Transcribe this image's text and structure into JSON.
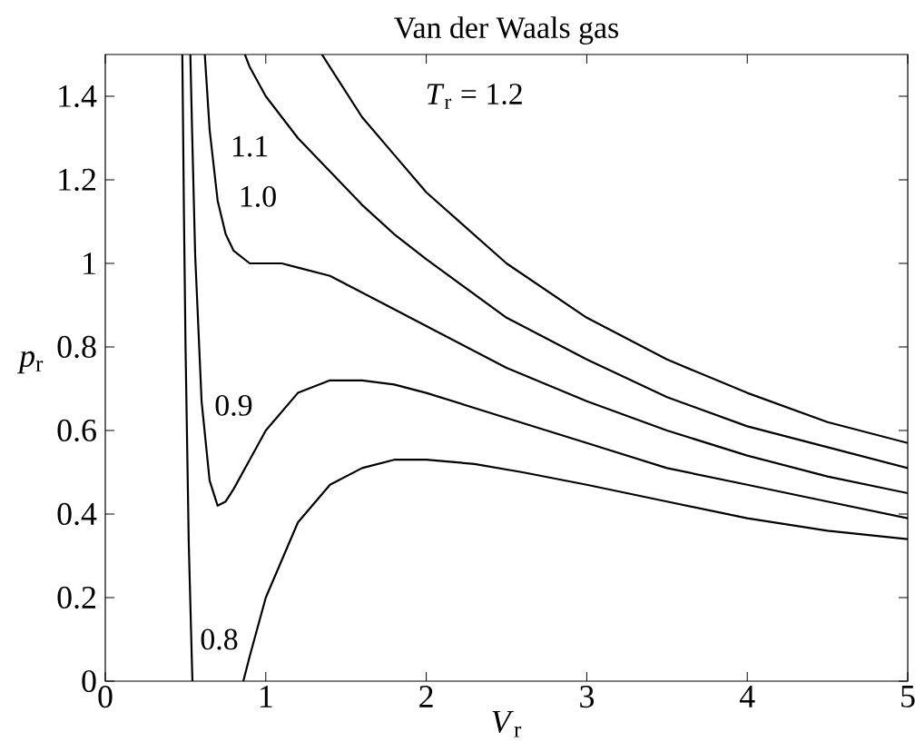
{
  "chart_data": {
    "type": "line",
    "title": "Van der Waals gas",
    "xlabel": "*V*$_{r}$",
    "ylabel": "*p*$_{r}$",
    "xlim": [
      0,
      5
    ],
    "ylim": [
      0,
      1.5
    ],
    "xticks": [
      0,
      1,
      2,
      3,
      4,
      5
    ],
    "yticks": [
      0,
      0.2,
      0.4,
      0.6,
      0.8,
      1,
      1.2,
      1.4
    ],
    "grid": false,
    "line_style": "solid",
    "marker": "none",
    "series": [
      {
        "name": "0.8",
        "color": "#000000",
        "x": [
          0.48,
          0.485,
          0.49,
          0.5,
          0.52,
          0.54,
          0.543,
          0.7,
          0.86,
          0.9,
          1.0,
          1.2,
          1.4,
          1.6,
          1.8,
          2.0,
          2.3,
          2.6,
          3.0,
          3.5,
          4.0,
          4.5,
          5.0
        ],
        "values": [
          1.5,
          1.31,
          1.12,
          0.8,
          0.33,
          0.04,
          0,
          null,
          0,
          0.06,
          0.2,
          0.38,
          0.47,
          0.51,
          0.53,
          0.53,
          0.52,
          0.5,
          0.47,
          0.43,
          0.39,
          0.36,
          0.34
        ]
      },
      {
        "name": "0.9",
        "color": "#000000",
        "x": [
          0.53,
          0.54,
          0.56,
          0.6,
          0.65,
          0.7,
          0.75,
          0.8,
          0.9,
          1.0,
          1.2,
          1.4,
          1.6,
          1.8,
          2.0,
          2.5,
          3.0,
          3.5,
          4.0,
          4.5,
          5.0
        ],
        "values": [
          1.5,
          1.33,
          1.02,
          0.67,
          0.48,
          0.42,
          0.43,
          0.46,
          0.53,
          0.6,
          0.69,
          0.72,
          0.72,
          0.71,
          0.69,
          0.63,
          0.57,
          0.51,
          0.47,
          0.43,
          0.39
        ]
      },
      {
        "name": "1.0",
        "color": "#000000",
        "x": [
          0.62,
          0.65,
          0.7,
          0.75,
          0.8,
          0.9,
          1.0,
          1.1,
          1.2,
          1.4,
          1.6,
          1.8,
          2.0,
          2.5,
          3.0,
          3.5,
          4.0,
          4.5,
          5.0
        ],
        "values": [
          1.5,
          1.32,
          1.15,
          1.07,
          1.03,
          1.0,
          1.0,
          1.0,
          0.99,
          0.97,
          0.93,
          0.89,
          0.85,
          0.75,
          0.67,
          0.6,
          0.54,
          0.49,
          0.45
        ]
      },
      {
        "name": "1.1",
        "color": "#000000",
        "x": [
          0.87,
          0.9,
          1.0,
          1.2,
          1.4,
          1.6,
          1.8,
          2.0,
          2.5,
          3.0,
          3.5,
          4.0,
          4.5,
          5.0
        ],
        "values": [
          1.5,
          1.47,
          1.4,
          1.3,
          1.22,
          1.14,
          1.07,
          1.01,
          0.87,
          0.77,
          0.68,
          0.61,
          0.56,
          0.51
        ]
      },
      {
        "name": "*T*$_{r}$ = 1.2",
        "color": "#000000",
        "x": [
          1.35,
          1.4,
          1.6,
          1.8,
          2.0,
          2.5,
          3.0,
          3.5,
          4.0,
          4.5,
          5.0
        ],
        "values": [
          1.5,
          1.47,
          1.35,
          1.26,
          1.17,
          1.0,
          0.87,
          0.77,
          0.69,
          0.62,
          0.57
        ]
      }
    ]
  }
}
